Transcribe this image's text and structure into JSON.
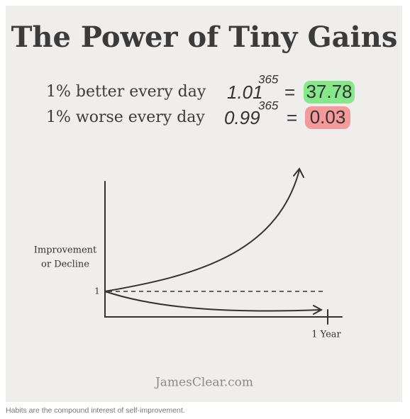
{
  "title": "The Power of Tiny Gains",
  "rows": [
    {
      "label": "1% better every day",
      "base": "1.01",
      "exponent": "365",
      "equals": "=",
      "result": "37.78"
    },
    {
      "label": "1% worse every day",
      "base": "0.99",
      "exponent": "365",
      "equals": "=",
      "result": "0.03"
    }
  ],
  "chart": {
    "y_label_line1": "Improvement",
    "y_label_line2": "or Decline",
    "y_tick": "1",
    "x_tick": "1 Year"
  },
  "footer": "JamesClear.com",
  "caption": "Habits are the compound interest of self-improvement."
}
